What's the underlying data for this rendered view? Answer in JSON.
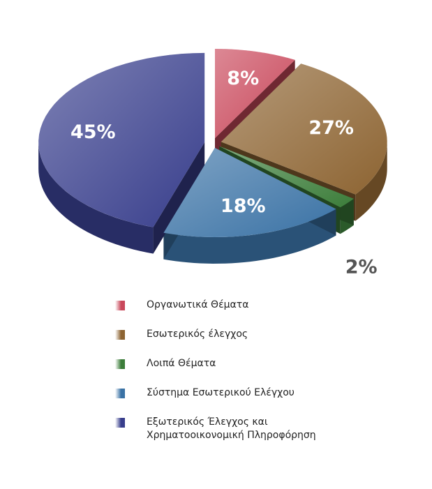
{
  "chart_data": {
    "type": "pie",
    "categories": [
      "Οργανωτικά Θέματα",
      "Εσωτερικός έλεγχος",
      "Λοιπά Θέματα",
      "Σύστημα Εσωτερικού Ελέγχου",
      "Εξωτερικός Έλεγχος και Χρηματοοικονομική Πληροφόρηση"
    ],
    "values": [
      8,
      27,
      2,
      18,
      45
    ],
    "value_labels": [
      "8%",
      "27%",
      "2%",
      "18%",
      "45%"
    ],
    "colors": [
      "#c9485b",
      "#8d6432",
      "#3c7d3a",
      "#3a72a5",
      "#383e8c"
    ]
  }
}
